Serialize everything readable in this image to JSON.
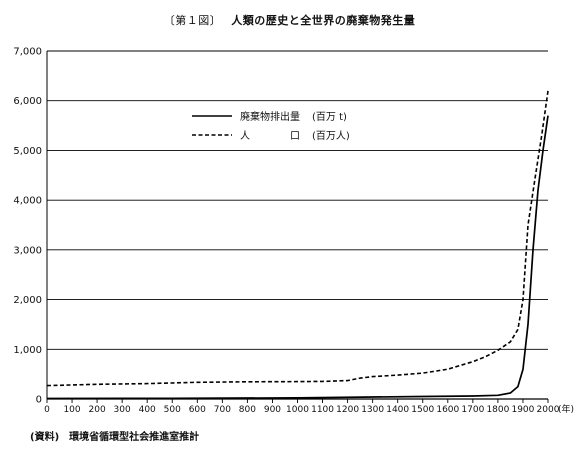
{
  "chart_data": {
    "type": "line",
    "title_number": "〔第１図〕",
    "title": "人類の歴史と全世界の廃棄物発生量",
    "x_unit": "(年)",
    "xlim": [
      0,
      2000
    ],
    "ylim": [
      0,
      7000
    ],
    "x_ticks": [
      0,
      100,
      200,
      300,
      400,
      500,
      600,
      700,
      800,
      900,
      1000,
      1100,
      1200,
      1300,
      1400,
      1500,
      1600,
      1700,
      1800,
      1900,
      2000
    ],
    "y_ticks": [
      0,
      1000,
      2000,
      3000,
      4000,
      5000,
      6000,
      7000
    ],
    "y_tick_labels": [
      "0",
      "1,000",
      "2,000",
      "3,000",
      "4,000",
      "5,000",
      "6,000",
      "7,000"
    ],
    "grid": "horizontal",
    "legend_position": "upper-middle",
    "series": [
      {
        "name": "廃棄物排出量",
        "unit": "(百万 t)",
        "style": "solid",
        "points": [
          [
            0,
            10
          ],
          [
            500,
            15
          ],
          [
            1000,
            22
          ],
          [
            1300,
            40
          ],
          [
            1500,
            50
          ],
          [
            1700,
            60
          ],
          [
            1800,
            75
          ],
          [
            1850,
            120
          ],
          [
            1880,
            250
          ],
          [
            1900,
            600
          ],
          [
            1920,
            1500
          ],
          [
            1940,
            3000
          ],
          [
            1960,
            4200
          ],
          [
            1980,
            5000
          ],
          [
            2000,
            5700
          ]
        ]
      },
      {
        "name": "人　　　　口",
        "unit": "(百万人)",
        "style": "dashed",
        "points": [
          [
            0,
            270
          ],
          [
            200,
            295
          ],
          [
            400,
            310
          ],
          [
            600,
            335
          ],
          [
            800,
            345
          ],
          [
            1000,
            350
          ],
          [
            1100,
            355
          ],
          [
            1200,
            370
          ],
          [
            1250,
            420
          ],
          [
            1300,
            450
          ],
          [
            1400,
            480
          ],
          [
            1500,
            520
          ],
          [
            1600,
            600
          ],
          [
            1700,
            750
          ],
          [
            1750,
            850
          ],
          [
            1800,
            980
          ],
          [
            1850,
            1150
          ],
          [
            1880,
            1400
          ],
          [
            1900,
            2000
          ],
          [
            1920,
            3500
          ],
          [
            1950,
            4500
          ],
          [
            1975,
            5300
          ],
          [
            2000,
            6200
          ]
        ]
      }
    ]
  },
  "footer": {
    "source_label": "(資料)",
    "source_text": "環境省循環型社会推進室推計"
  }
}
